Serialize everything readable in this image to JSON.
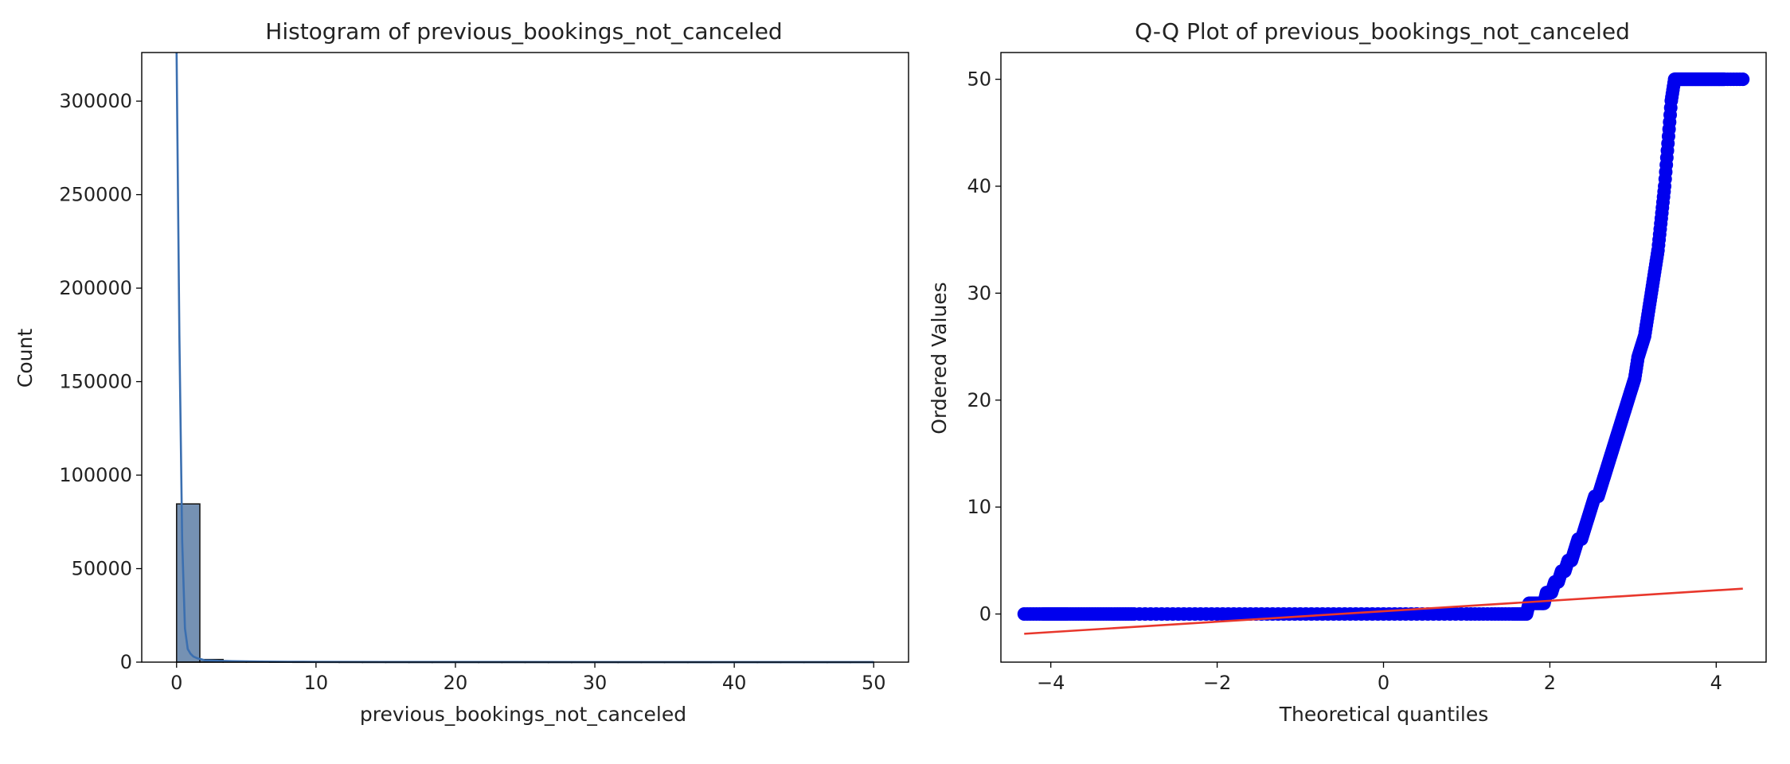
{
  "chart_data": [
    {
      "type": "bar",
      "title": "Histogram of previous_bookings_not_canceled",
      "xlabel": "previous_bookings_not_canceled",
      "ylabel": "Count",
      "xlim": [
        -2.5,
        52.5
      ],
      "ylim": [
        0,
        326000
      ],
      "xticks": [
        0,
        10,
        20,
        30,
        40,
        50
      ],
      "xtick_labels": [
        "0",
        "10",
        "20",
        "30",
        "40",
        "50"
      ],
      "yticks": [
        0,
        50000,
        100000,
        150000,
        200000,
        250000,
        300000
      ],
      "ytick_labels": [
        "0",
        "50000",
        "100000",
        "150000",
        "200000",
        "250000",
        "300000"
      ],
      "bin_width": 1.667,
      "bins": [
        {
          "x0": 0.0,
          "value": 84600
        },
        {
          "x0": 1.667,
          "value": 1400
        },
        {
          "x0": 3.333,
          "value": 500
        },
        {
          "x0": 5.0,
          "value": 250
        },
        {
          "x0": 6.667,
          "value": 150
        },
        {
          "x0": 8.333,
          "value": 100
        },
        {
          "x0": 10.0,
          "value": 80
        },
        {
          "x0": 11.667,
          "value": 60
        },
        {
          "x0": 13.333,
          "value": 50
        },
        {
          "x0": 15.0,
          "value": 40
        },
        {
          "x0": 16.667,
          "value": 30
        },
        {
          "x0": 18.333,
          "value": 30
        },
        {
          "x0": 20.0,
          "value": 25
        },
        {
          "x0": 21.667,
          "value": 25
        },
        {
          "x0": 23.333,
          "value": 20
        },
        {
          "x0": 25.0,
          "value": 20
        },
        {
          "x0": 26.667,
          "value": 15
        },
        {
          "x0": 28.333,
          "value": 15
        },
        {
          "x0": 30.0,
          "value": 15
        },
        {
          "x0": 31.667,
          "value": 10
        },
        {
          "x0": 33.333,
          "value": 10
        },
        {
          "x0": 35.0,
          "value": 10
        },
        {
          "x0": 36.667,
          "value": 10
        },
        {
          "x0": 38.333,
          "value": 10
        },
        {
          "x0": 40.0,
          "value": 10
        },
        {
          "x0": 41.667,
          "value": 10
        },
        {
          "x0": 43.333,
          "value": 10
        },
        {
          "x0": 45.0,
          "value": 10
        },
        {
          "x0": 46.667,
          "value": 10
        },
        {
          "x0": 48.333,
          "value": 15
        }
      ],
      "kde": {
        "x": [
          0,
          0.2,
          0.4,
          0.6,
          0.8,
          1.0,
          1.2,
          1.5,
          1.8,
          2.0,
          2.5,
          3.0,
          4,
          5,
          6,
          8,
          10,
          15,
          20,
          30,
          40,
          50
        ],
        "y": [
          326000,
          175000,
          65000,
          18000,
          7000,
          4500,
          3000,
          2000,
          1500,
          1000,
          900,
          700,
          500,
          400,
          300,
          200,
          150,
          100,
          80,
          50,
          30,
          20
        ]
      },
      "colors": {
        "bar_fill": "#7591b3",
        "bar_edge": "#1a1a1a",
        "kde": "#3b6fb0"
      }
    },
    {
      "type": "scatter",
      "title": "Q-Q Plot of previous_bookings_not_canceled",
      "xlabel": "Theoretical quantiles",
      "ylabel": "Ordered Values",
      "xlim": [
        -4.6,
        4.6
      ],
      "ylim": [
        -4.5,
        52.5
      ],
      "xticks": [
        -4,
        -2,
        0,
        2,
        4
      ],
      "xtick_labels": [
        "−4",
        "−2",
        "0",
        "2",
        "4"
      ],
      "yticks": [
        0,
        10,
        20,
        30,
        40,
        50
      ],
      "ytick_labels": [
        "0",
        "10",
        "20",
        "30",
        "40",
        "50"
      ],
      "points": {
        "x": [
          -4.32,
          -4.1,
          -4.0,
          -3.9,
          -3.8,
          -3.6,
          -3.4,
          -3.2,
          -3.0,
          -2.6,
          -2.2,
          -1.8,
          -1.4,
          -1.0,
          -0.6,
          -0.2,
          0.2,
          0.6,
          1.0,
          1.3,
          1.55,
          1.72,
          1.75,
          1.78,
          1.82,
          1.86,
          1.9,
          1.93,
          1.96,
          1.99,
          2.02,
          2.06,
          2.1,
          2.14,
          2.18,
          2.22,
          2.26,
          2.3,
          2.34,
          2.38,
          2.42,
          2.46,
          2.5,
          2.54,
          2.58,
          2.62,
          2.66,
          2.7,
          2.74,
          2.78,
          2.82,
          2.86,
          2.9,
          2.94,
          2.98,
          3.02,
          3.06,
          3.1,
          3.14,
          3.18,
          3.22,
          3.26,
          3.3,
          3.34,
          3.38,
          3.42,
          3.46,
          3.5,
          3.55,
          3.6,
          3.65,
          3.7,
          3.75,
          3.8,
          3.85,
          3.9,
          3.95,
          4.0,
          4.05,
          4.1,
          4.32
        ],
        "y": [
          0,
          0,
          0,
          0,
          0,
          0,
          0,
          0,
          0,
          0,
          0,
          0,
          0,
          0,
          0,
          0,
          0,
          0,
          0,
          0,
          0,
          0,
          1,
          1,
          1,
          1,
          1,
          1,
          2,
          2,
          2,
          3,
          3,
          4,
          4,
          5,
          5,
          6,
          7,
          7,
          8,
          9,
          10,
          11,
          11,
          12,
          13,
          14,
          15,
          16,
          17,
          18,
          19,
          20,
          21,
          22,
          24,
          25,
          26,
          28,
          30,
          32,
          34,
          37,
          40,
          44,
          48,
          50,
          50,
          50,
          50,
          50,
          50,
          50,
          50,
          50,
          50,
          50,
          50,
          50,
          50
        ]
      },
      "fit_line": {
        "x": [
          -4.32,
          4.32
        ],
        "y": [
          -1.85,
          2.37
        ]
      },
      "colors": {
        "points": "#0000ee",
        "fit_line": "#e8372c"
      }
    }
  ]
}
